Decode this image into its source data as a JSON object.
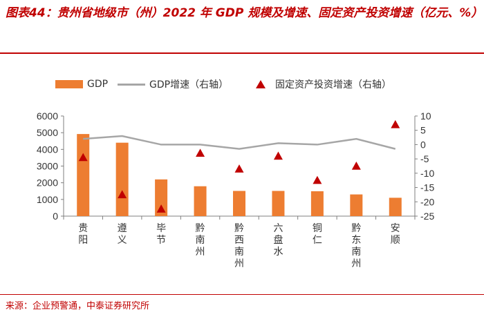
{
  "header": {
    "title": "图表44：贵州省地级市（州）2022 年 GDP 规模及增速、固定资产投资增速（亿元、%）"
  },
  "legend": {
    "gdp": "GDP",
    "gdp_growth": "GDP增速（右轴）",
    "investment_growth": "固定资产投资增速（右轴）"
  },
  "footer": {
    "source": "来源：企业预警通，中泰证券研究所"
  },
  "colors": {
    "bar": "#ed7d31",
    "line": "#a6a6a6",
    "marker": "#c00000",
    "title": "#c00000"
  },
  "chart_data": {
    "type": "bar",
    "title": "贵州省地级市（州）2022 年 GDP 规模及增速、固定资产投资增速（亿元、%）",
    "categories": [
      "贵阳",
      "遵义",
      "毕节",
      "黔南州",
      "黔西南州",
      "六盘水",
      "铜仁",
      "黔东南州",
      "安顺"
    ],
    "series": [
      {
        "name": "GDP",
        "type": "bar",
        "axis": "left",
        "values": [
          4920,
          4400,
          2200,
          1790,
          1510,
          1510,
          1490,
          1300,
          1100
        ]
      },
      {
        "name": "GDP增速（右轴）",
        "type": "line",
        "axis": "right",
        "values": [
          2.0,
          3.0,
          0.0,
          0.0,
          -1.5,
          0.5,
          0.0,
          2.0,
          -1.5
        ]
      },
      {
        "name": "固定资产投资增速（右轴）",
        "type": "scatter",
        "axis": "right",
        "values": [
          -4.5,
          -17.5,
          -22.5,
          -3.0,
          -8.5,
          -4.0,
          -12.5,
          -7.5,
          7.0
        ]
      }
    ],
    "y_left": {
      "label": "",
      "lim": [
        0,
        6000
      ],
      "ticks": [
        0,
        1000,
        2000,
        3000,
        4000,
        5000,
        6000
      ]
    },
    "y_right": {
      "label": "",
      "lim": [
        -25,
        10
      ],
      "ticks": [
        -25,
        -20,
        -15,
        -10,
        -5,
        0,
        5,
        10
      ]
    },
    "xlabel": "",
    "grid": false,
    "legend_position": "top"
  }
}
